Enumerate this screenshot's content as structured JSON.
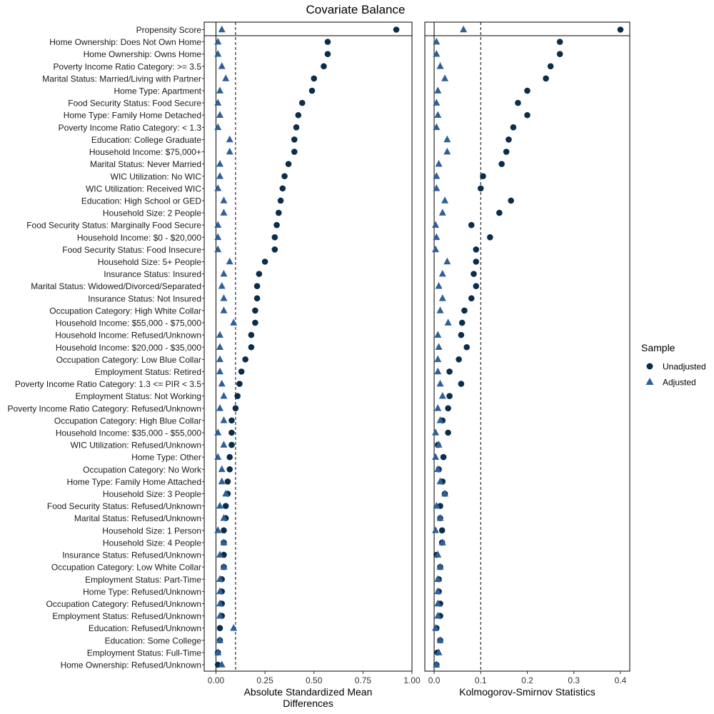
{
  "chart_data": {
    "type": "scatter",
    "title": "Covariate Balance",
    "legend": {
      "title": "Sample",
      "position": "right",
      "entries": [
        {
          "name": "Unadjusted",
          "marker": "circle",
          "color": "#0b2d4a"
        },
        {
          "name": "Adjusted",
          "marker": "triangle",
          "color": "#2f5f98"
        }
      ]
    },
    "categories": [
      "Propensity Score",
      "Home Ownership: Does Not Own Home",
      "Home Ownership: Owns Home",
      "Poverty Income Ratio Category: >= 3.5",
      "Marital Status: Married/Living with Partner",
      "Home Type: Apartment",
      "Food Security Status: Food Secure",
      "Home Type: Family Home Detached",
      "Poverty Income Ratio Category: < 1.3",
      "Education: College Graduate",
      "Household Income: $75,000+",
      "Marital Status: Never Married",
      "WIC Utilization: No WIC",
      "WIC Utilization: Received WIC",
      "Education: High School or GED",
      "Household Size: 2 People",
      "Food Security Status: Marginally Food Secure",
      "Household Income: $0 - $20,000",
      "Food Security Status: Food Insecure",
      "Household Size: 5+ People",
      "Insurance Status: Insured",
      "Marital Status: Widowed/Divorced/Separated",
      "Insurance Status: Not Insured",
      "Occupation Category: High White Collar",
      "Household Income: $55,000 - $75,000",
      "Household Income: Refused/Unknown",
      "Household Income: $20,000 - $35,000",
      "Occupation Category: Low Blue Collar",
      "Employment Status: Retired",
      "Poverty Income Ratio Category: 1.3 <= PIR < 3.5",
      "Employment Status: Not Working",
      "Poverty Income Ratio Category: Refused/Unknown",
      "Occupation Category: High Blue Collar",
      "Household Income: $35,000 - $55,000",
      "WIC Utilization: Refused/Unknown",
      "Home Type: Other",
      "Occupation Category: No Work",
      "Home Type: Family Home Attached",
      "Household Size: 3 People",
      "Food Security Status: Refused/Unknown",
      "Marital Status: Refused/Unknown",
      "Household Size: 1 Person",
      "Household Size: 4 People",
      "Insurance Status: Refused/Unknown",
      "Occupation Category: Low White Collar",
      "Employment Status: Part-Time",
      "Home Type: Refused/Unknown",
      "Occupation Category: Refused/Unknown",
      "Employment Status: Refused/Unknown",
      "Education: Refused/Unknown",
      "Education: Some College",
      "Employment Status: Full-Time",
      "Home Ownership: Refused/Unknown"
    ],
    "panels": [
      {
        "xlabel": "Absolute Standardized Mean Differences",
        "xlim": [
          -0.06,
          1.0
        ],
        "xticks": [
          0.0,
          0.25,
          0.5,
          0.75,
          1.0
        ],
        "xtick_labels": [
          "0.00",
          "0.25",
          "0.50",
          "0.75",
          "1.00"
        ],
        "threshold": 0.1,
        "series": [
          {
            "name": "Unadjusted",
            "values": [
              0.92,
              0.57,
              0.57,
              0.55,
              0.5,
              0.49,
              0.44,
              0.42,
              0.41,
              0.4,
              0.4,
              0.37,
              0.35,
              0.34,
              0.33,
              0.32,
              0.31,
              0.3,
              0.3,
              0.25,
              0.22,
              0.21,
              0.21,
              0.2,
              0.2,
              0.18,
              0.18,
              0.15,
              0.13,
              0.12,
              0.11,
              0.1,
              0.08,
              0.08,
              0.08,
              0.07,
              0.07,
              0.06,
              0.06,
              0.05,
              0.05,
              0.04,
              0.04,
              0.04,
              0.04,
              0.03,
              0.03,
              0.03,
              0.03,
              0.02,
              0.02,
              0.01,
              0.01
            ]
          },
          {
            "name": "Adjusted",
            "values": [
              0.03,
              0.01,
              0.01,
              0.03,
              0.05,
              0.02,
              0.01,
              0.02,
              0.01,
              0.07,
              0.07,
              0.02,
              0.02,
              0.01,
              0.04,
              0.04,
              0.01,
              0.01,
              0.01,
              0.07,
              0.04,
              0.03,
              0.04,
              0.04,
              0.09,
              0.02,
              0.02,
              0.02,
              0.02,
              0.03,
              0.04,
              0.02,
              0.04,
              0.01,
              0.04,
              0.01,
              0.03,
              0.03,
              0.05,
              0.02,
              0.04,
              0.01,
              0.04,
              0.02,
              0.04,
              0.02,
              0.02,
              0.02,
              0.02,
              0.09,
              0.02,
              0.01,
              0.03
            ]
          }
        ]
      },
      {
        "xlabel": "Kolmogorov-Smirnov Statistics",
        "xlim": [
          -0.02,
          0.42
        ],
        "xticks": [
          0.0,
          0.1,
          0.2,
          0.3,
          0.4
        ],
        "xtick_labels": [
          "0.0",
          "0.1",
          "0.2",
          "0.3",
          "0.4"
        ],
        "threshold": 0.1,
        "series": [
          {
            "name": "Unadjusted",
            "values": [
              0.4,
              0.27,
              0.27,
              0.25,
              0.24,
              0.2,
              0.18,
              0.2,
              0.17,
              0.16,
              0.155,
              0.145,
              0.105,
              0.1,
              0.165,
              0.14,
              0.08,
              0.12,
              0.09,
              0.09,
              0.085,
              0.09,
              0.08,
              0.065,
              0.06,
              0.058,
              0.07,
              0.053,
              0.033,
              0.058,
              0.033,
              0.03,
              0.018,
              0.03,
              0.008,
              0.02,
              0.01,
              0.018,
              0.023,
              0.013,
              0.013,
              0.017,
              0.017,
              0.005,
              0.013,
              0.01,
              0.01,
              0.013,
              0.013,
              0.005,
              0.013,
              0.007,
              0.005
            ]
          },
          {
            "name": "Adjusted",
            "values": [
              0.063,
              0.005,
              0.005,
              0.013,
              0.023,
              0.008,
              0.005,
              0.008,
              0.005,
              0.028,
              0.028,
              0.01,
              0.005,
              0.005,
              0.023,
              0.018,
              0.003,
              0.005,
              0.003,
              0.028,
              0.018,
              0.01,
              0.018,
              0.013,
              0.03,
              0.008,
              0.01,
              0.008,
              0.008,
              0.013,
              0.018,
              0.008,
              0.013,
              0.003,
              0.01,
              0.003,
              0.008,
              0.013,
              0.023,
              0.005,
              0.013,
              0.003,
              0.018,
              0.008,
              0.013,
              0.008,
              0.008,
              0.008,
              0.008,
              0.003,
              0.013,
              0.01,
              0.005
            ]
          }
        ]
      }
    ]
  }
}
